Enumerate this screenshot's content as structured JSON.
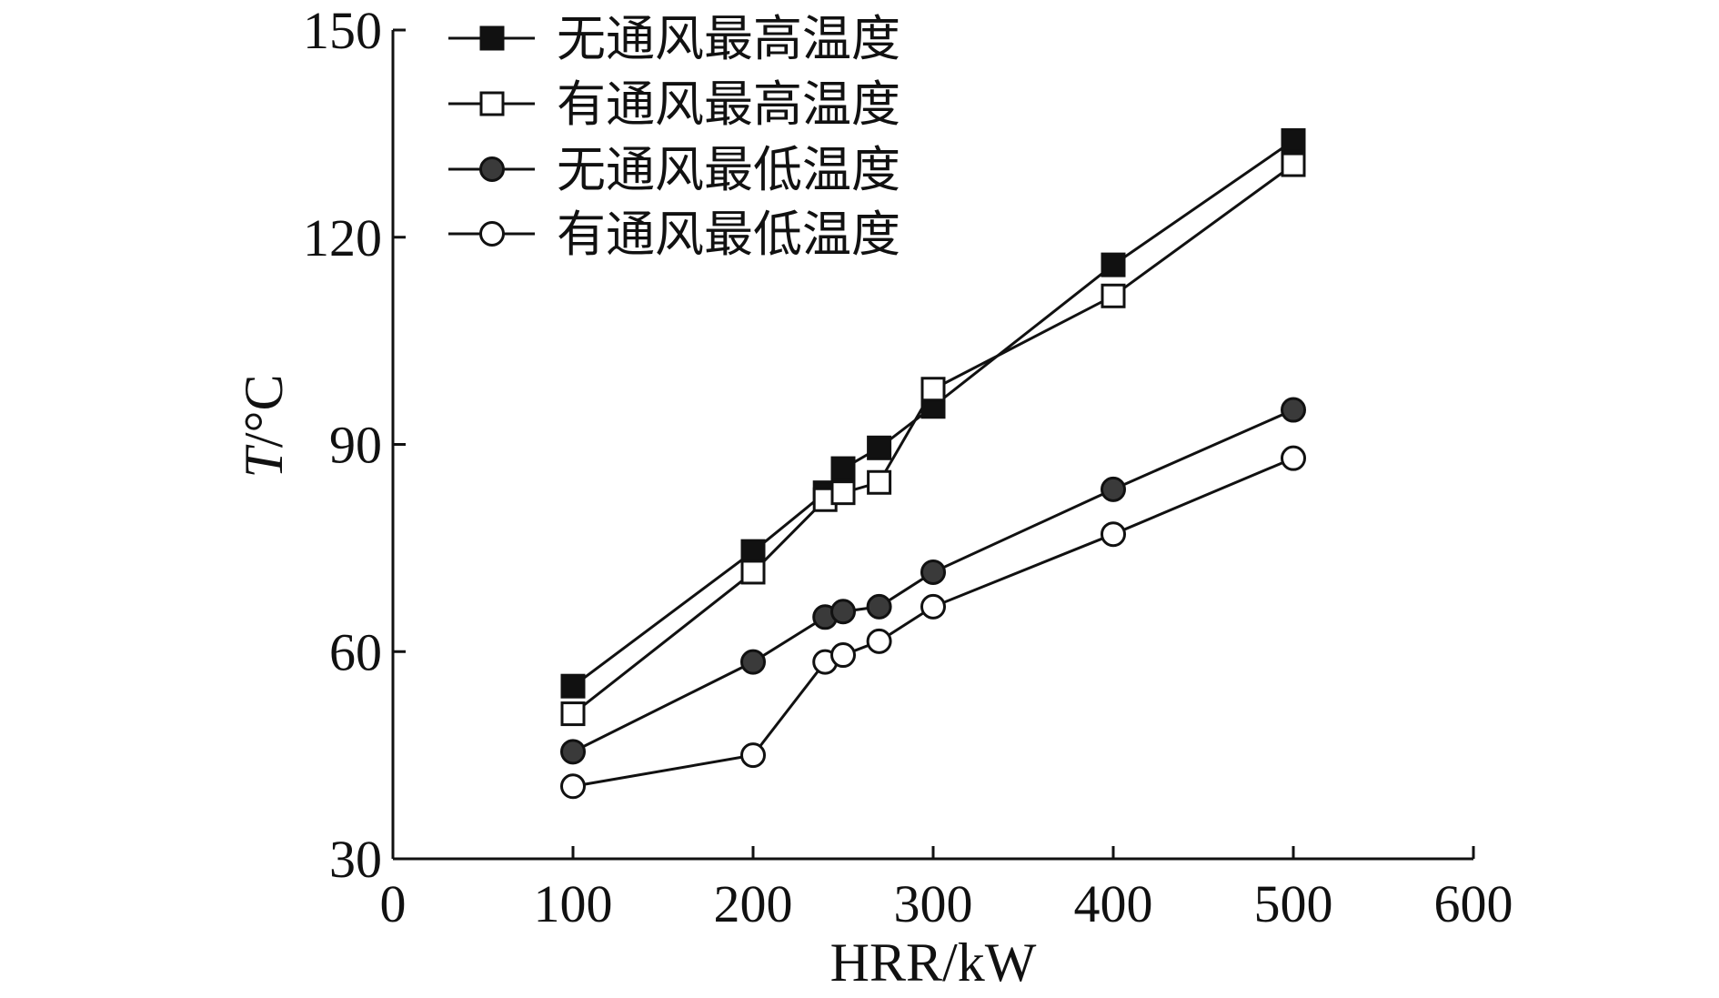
{
  "chart_data": {
    "type": "line",
    "title": "",
    "xlabel": "HRR/kW",
    "ylabel_italic": "T",
    "ylabel_unit": "/°C",
    "xlim": [
      0,
      600
    ],
    "ylim": [
      30,
      150
    ],
    "xticks": [
      0,
      100,
      200,
      300,
      400,
      500,
      600
    ],
    "yticks": [
      30,
      60,
      90,
      120,
      150
    ],
    "grid": false,
    "legend_position": "top-left",
    "series": [
      {
        "name": "无通风最高温度",
        "marker": "square",
        "fill": "#111111",
        "x": [
          100,
          200,
          240,
          250,
          270,
          300,
          400,
          500
        ],
        "y": [
          55.0,
          74.5,
          83.0,
          86.5,
          89.5,
          95.5,
          116.0,
          134.0
        ]
      },
      {
        "name": "有通风最高温度",
        "marker": "square",
        "fill": "#ffffff",
        "x": [
          100,
          200,
          240,
          250,
          270,
          300,
          400,
          500
        ],
        "y": [
          51.0,
          71.5,
          82.0,
          83.0,
          84.5,
          98.0,
          111.5,
          130.5
        ]
      },
      {
        "name": "无通风最低温度",
        "marker": "circle",
        "fill": "#3a3a3a",
        "x": [
          100,
          200,
          240,
          250,
          270,
          300,
          400,
          500
        ],
        "y": [
          45.5,
          58.5,
          65.0,
          65.8,
          66.5,
          71.5,
          83.5,
          95.0
        ]
      },
      {
        "name": "有通风最低温度",
        "marker": "circle",
        "fill": "#ffffff",
        "x": [
          100,
          200,
          240,
          250,
          270,
          300,
          400,
          500
        ],
        "y": [
          40.5,
          45.0,
          58.5,
          59.5,
          61.5,
          66.5,
          77.0,
          88.0
        ]
      }
    ]
  }
}
